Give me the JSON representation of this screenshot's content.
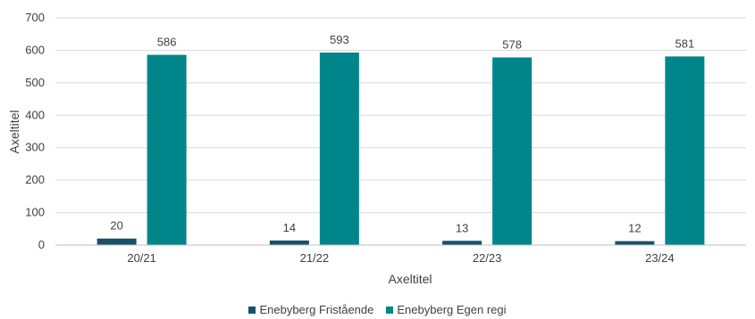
{
  "chart_data": {
    "type": "bar",
    "categories": [
      "20/21",
      "21/22",
      "22/23",
      "23/24"
    ],
    "series": [
      {
        "name": "Enebyberg Fristående",
        "values": [
          20,
          14,
          13,
          12
        ],
        "color": "#17506b"
      },
      {
        "name": "Enebyberg Egen regi",
        "values": [
          586,
          593,
          578,
          581
        ],
        "color": "#00868a"
      }
    ],
    "xlabel": "Axeltitel",
    "ylabel": "Axeltitel",
    "ylim": [
      0,
      700
    ],
    "yticks": [
      0,
      100,
      200,
      300,
      400,
      500,
      600,
      700
    ],
    "grid": true,
    "legend": "bottom"
  }
}
